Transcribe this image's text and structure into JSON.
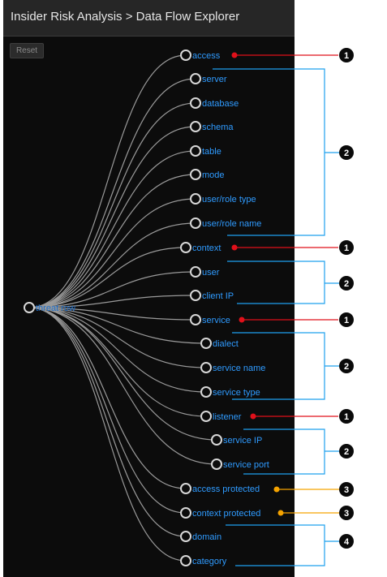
{
  "header": {
    "title": "Insider Risk Analysis > Data Flow Explorer"
  },
  "toolbar": {
    "reset_label": "Reset"
  },
  "tree": {
    "root": "threat row",
    "nodes": [
      "access",
      "server",
      "database",
      "schema",
      "table",
      "mode",
      "user/role type",
      "user/role name",
      "context",
      "user",
      "client IP",
      "service",
      "dialect",
      "service name",
      "service type",
      "listener",
      "service IP",
      "service port",
      "access protected",
      "context protected",
      "domain",
      "category"
    ]
  },
  "callouts": [
    "1",
    "2",
    "1",
    "2",
    "1",
    "2",
    "1",
    "2",
    "3",
    "3",
    "4"
  ],
  "colors": {
    "callout_red": "#e0101a",
    "callout_orange": "#f5a300",
    "bracket_blue": "#1ea0ee"
  }
}
